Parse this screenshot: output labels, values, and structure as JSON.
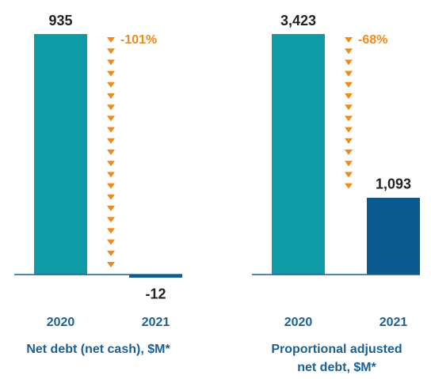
{
  "chart_data": [
    {
      "type": "bar",
      "title": "Net debt (net cash), $M*",
      "categories": [
        "2020",
        "2021"
      ],
      "values": [
        935,
        -12
      ],
      "colors": [
        "#0e9ba6",
        "#0b5a8e"
      ],
      "annotation": "-101%",
      "annotation_color": "#f08a1c"
    },
    {
      "type": "bar",
      "title": "Proportional adjusted net debt, $M*",
      "categories": [
        "2020",
        "2021"
      ],
      "values": [
        3423,
        1093
      ],
      "value_labels": [
        "3,423",
        "1,093"
      ],
      "colors": [
        "#0e9ba6",
        "#0b5a8e"
      ],
      "annotation": "-68%",
      "annotation_color": "#f08a1c"
    }
  ]
}
